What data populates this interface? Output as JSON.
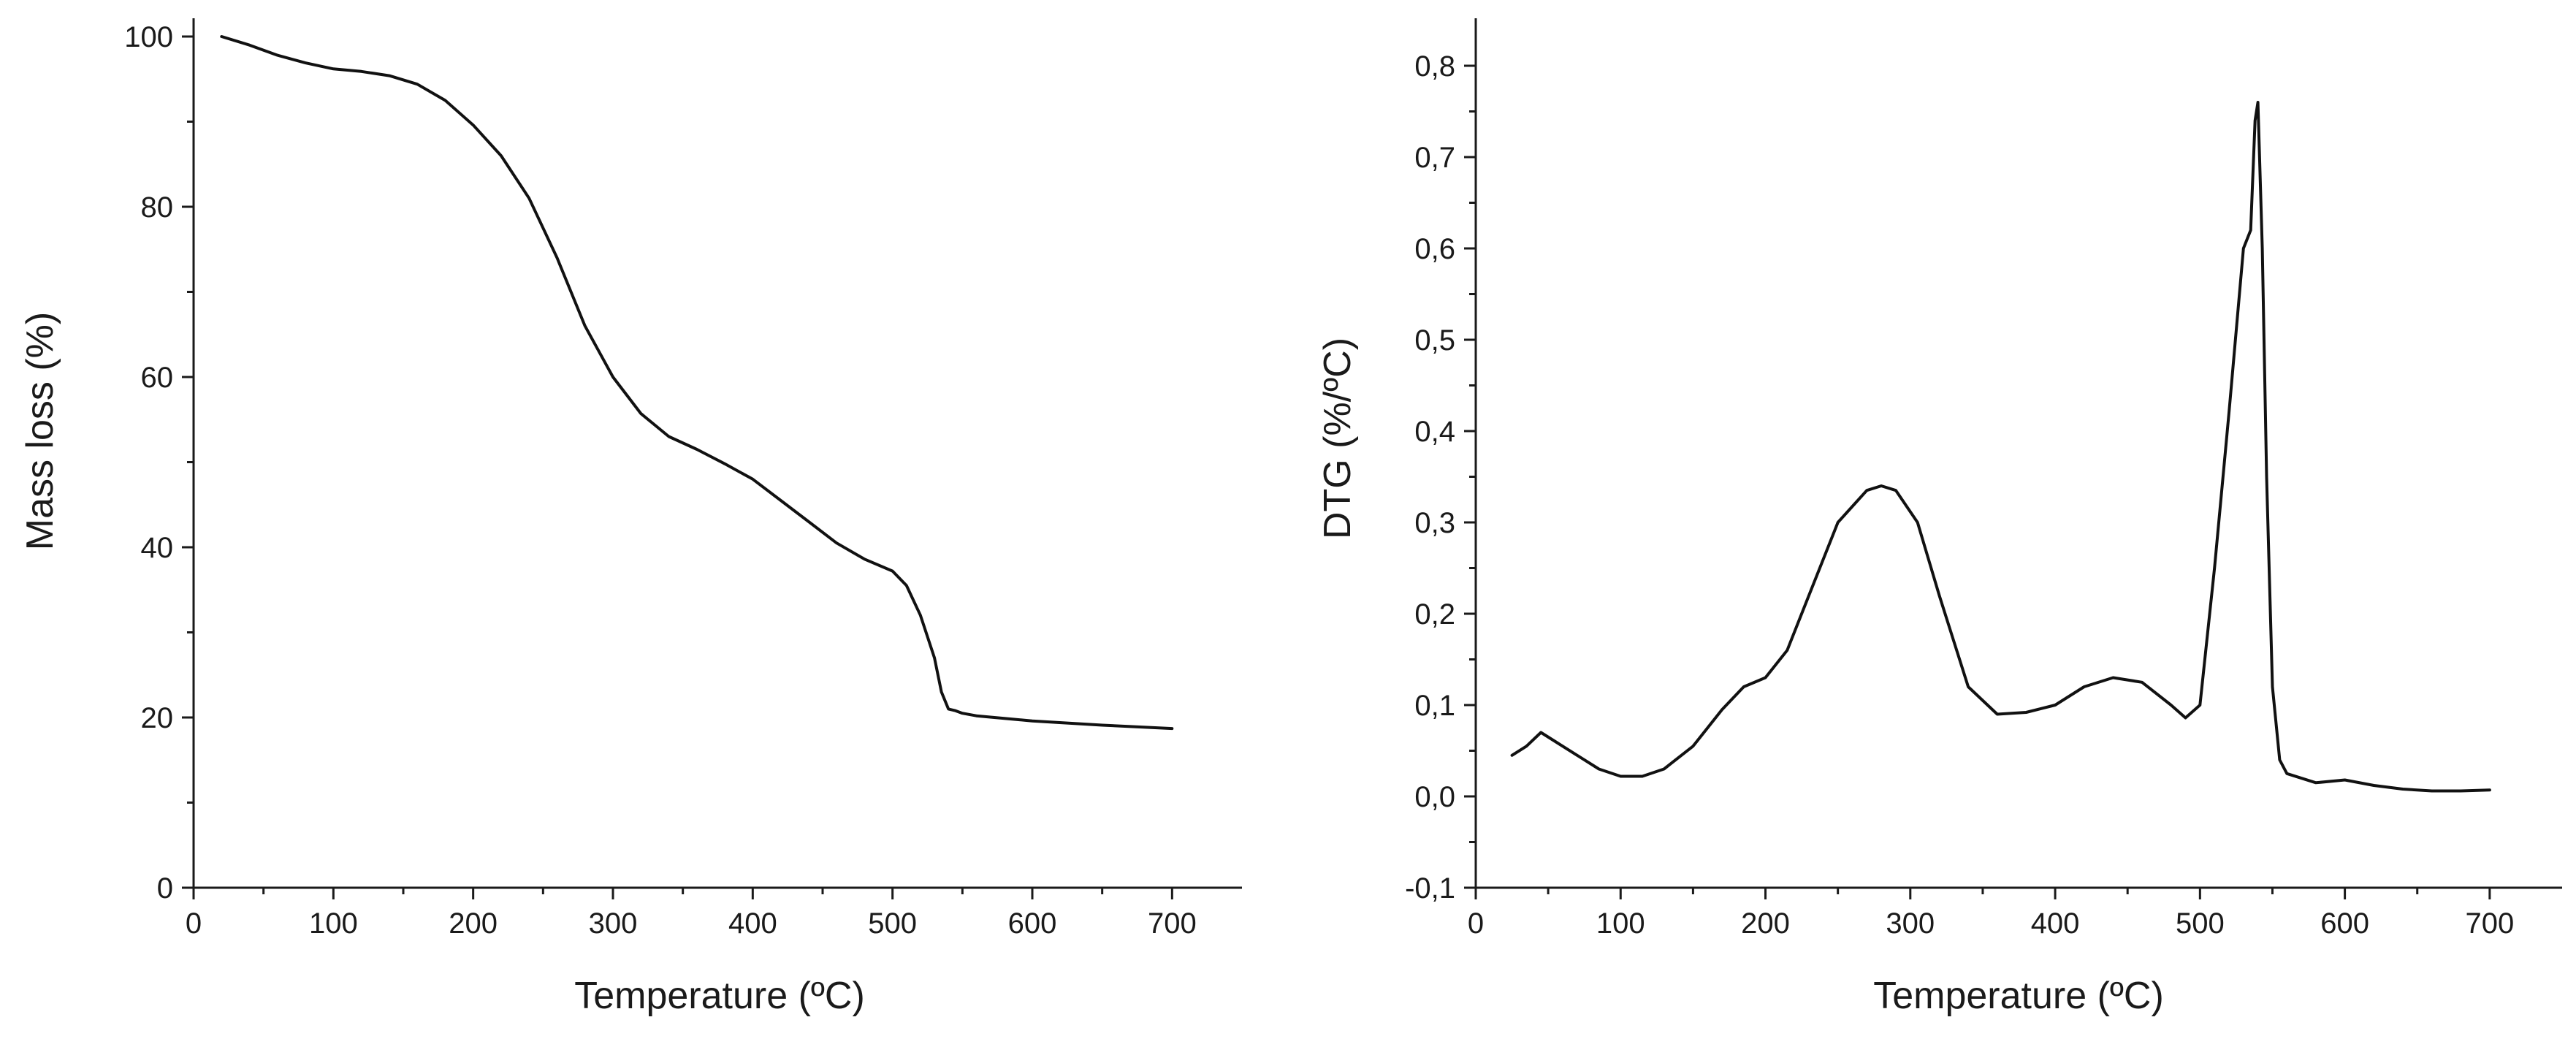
{
  "chart_data": [
    {
      "type": "line",
      "xlabel": "Temperature (ºC)",
      "ylabel": "Mass loss (%)",
      "xlim": [
        0,
        750
      ],
      "ylim": [
        0,
        100
      ],
      "xticks": [
        "0",
        "100",
        "200",
        "300",
        "400",
        "500",
        "600",
        "700"
      ],
      "yticks": [
        "0",
        "20",
        "40",
        "60",
        "80",
        "100"
      ],
      "grid": false,
      "series": [
        {
          "x": [
            20,
            40,
            60,
            80,
            100,
            120,
            140,
            160,
            180,
            200,
            220,
            240,
            260,
            280,
            300,
            320,
            340,
            360,
            380,
            400,
            420,
            440,
            460,
            480,
            500,
            510,
            520,
            530,
            535,
            540,
            545,
            550,
            560,
            580,
            600,
            650,
            700
          ],
          "y": [
            100,
            99,
            97.8,
            96.9,
            96.2,
            95.9,
            95.4,
            94.4,
            92.5,
            89.6,
            86,
            81,
            74,
            66,
            60,
            55.7,
            53,
            51.5,
            49.8,
            48,
            45.5,
            43,
            40.5,
            38.6,
            37.2,
            35.5,
            32,
            27,
            23,
            21,
            20.8,
            20.5,
            20.2,
            19.9,
            19.6,
            19.1,
            18.7
          ]
        }
      ]
    },
    {
      "type": "line",
      "xlabel": "Temperature (ºC)",
      "ylabel": "DTG (%/ºC)",
      "xlim": [
        0,
        750
      ],
      "ylim": [
        -0.1,
        0.8
      ],
      "xticks": [
        "0",
        "100",
        "200",
        "300",
        "400",
        "500",
        "600",
        "700"
      ],
      "yticks": [
        "-0,1",
        "0,0",
        "0,1",
        "0,2",
        "0,3",
        "0,4",
        "0,5",
        "0,6",
        "0,7",
        "0,8"
      ],
      "grid": false,
      "series": [
        {
          "x": [
            25,
            35,
            45,
            55,
            70,
            85,
            100,
            115,
            130,
            150,
            170,
            185,
            200,
            215,
            230,
            250,
            270,
            280,
            290,
            305,
            320,
            340,
            360,
            380,
            400,
            420,
            440,
            460,
            480,
            490,
            500,
            510,
            520,
            530,
            535,
            538,
            540,
            543,
            546,
            550,
            555,
            560,
            580,
            600,
            620,
            640,
            660,
            680,
            700
          ],
          "y": [
            0.045,
            0.055,
            0.07,
            0.06,
            0.045,
            0.03,
            0.022,
            0.022,
            0.03,
            0.055,
            0.095,
            0.12,
            0.13,
            0.16,
            0.22,
            0.3,
            0.335,
            0.34,
            0.335,
            0.3,
            0.22,
            0.12,
            0.09,
            0.092,
            0.1,
            0.12,
            0.13,
            0.125,
            0.1,
            0.086,
            0.1,
            0.25,
            0.42,
            0.6,
            0.62,
            0.74,
            0.76,
            0.6,
            0.35,
            0.12,
            0.04,
            0.025,
            0.015,
            0.018,
            0.012,
            0.008,
            0.006,
            0.006,
            0.007
          ]
        }
      ]
    }
  ]
}
